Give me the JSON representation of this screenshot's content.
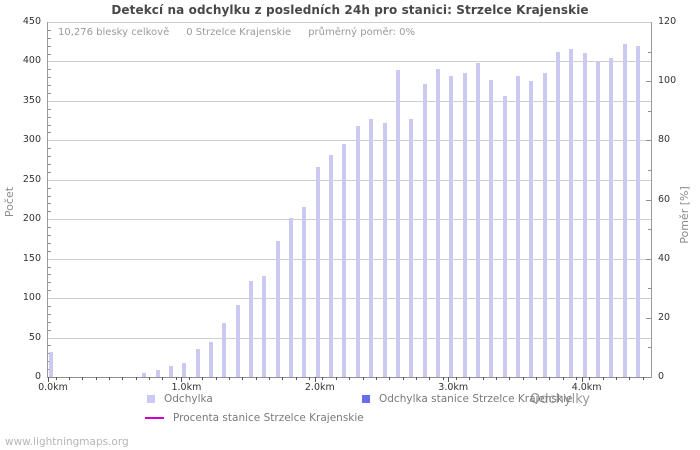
{
  "page": {
    "footer": "www.lightningmaps.org",
    "background": "#ffffff"
  },
  "chart_data": {
    "type": "bar",
    "title": "Detekcí na odchylku z posledních 24h pro stanici: Strzelce Krajenskie",
    "stats": {
      "total": "10,276 blesky celkově",
      "station": "0 Strzelce Krajenskie",
      "ratio": "průměrný poměr: 0%"
    },
    "xlabel": "Odchylky",
    "ylabel_left": "Počet",
    "ylabel_right": "Poměr [%]",
    "x_unit": "km",
    "x_start": 0.0,
    "x_step": 0.1,
    "x_tick_labels": [
      "0.0km",
      "1.0km",
      "2.0km",
      "3.0km",
      "4.0km"
    ],
    "ylim_left": [
      0,
      450
    ],
    "ylim_right": [
      0,
      120
    ],
    "y_ticks_left": [
      0,
      50,
      100,
      150,
      200,
      250,
      300,
      350,
      400,
      450
    ],
    "y_ticks_right": [
      0,
      20,
      40,
      60,
      80,
      100,
      120
    ],
    "grid": true,
    "legend_position": "bottom",
    "series": [
      {
        "name": "Odchylka",
        "color": "#c9c9f2",
        "values": [
          32,
          0,
          0,
          0,
          0,
          0,
          0,
          5,
          9,
          14,
          18,
          35,
          45,
          68,
          91,
          122,
          128,
          172,
          201,
          215,
          266,
          282,
          296,
          318,
          327,
          322,
          389,
          327,
          372,
          391,
          381,
          386,
          398,
          377,
          356,
          381,
          375,
          386,
          412,
          416,
          411,
          400,
          405,
          422,
          420
        ]
      },
      {
        "name": "Odchylka stanice Strzelce Krajenskie",
        "color": "#6b6bef",
        "values_uniform": 0
      },
      {
        "name": "Procenta stanice Strzelce Krajenskie",
        "color": "#cc00cc",
        "type": "line",
        "values_uniform": 0
      }
    ],
    "legend": [
      {
        "label": "Odchylka",
        "color": "#c9c9f2",
        "kind": "bar"
      },
      {
        "label": "Odchylka stanice Strzelce Krajenskie",
        "color": "#6b6bef",
        "kind": "bar"
      },
      {
        "label": "Procenta stanice Strzelce Krajenskie",
        "color": "#cc00cc",
        "kind": "line"
      }
    ]
  }
}
